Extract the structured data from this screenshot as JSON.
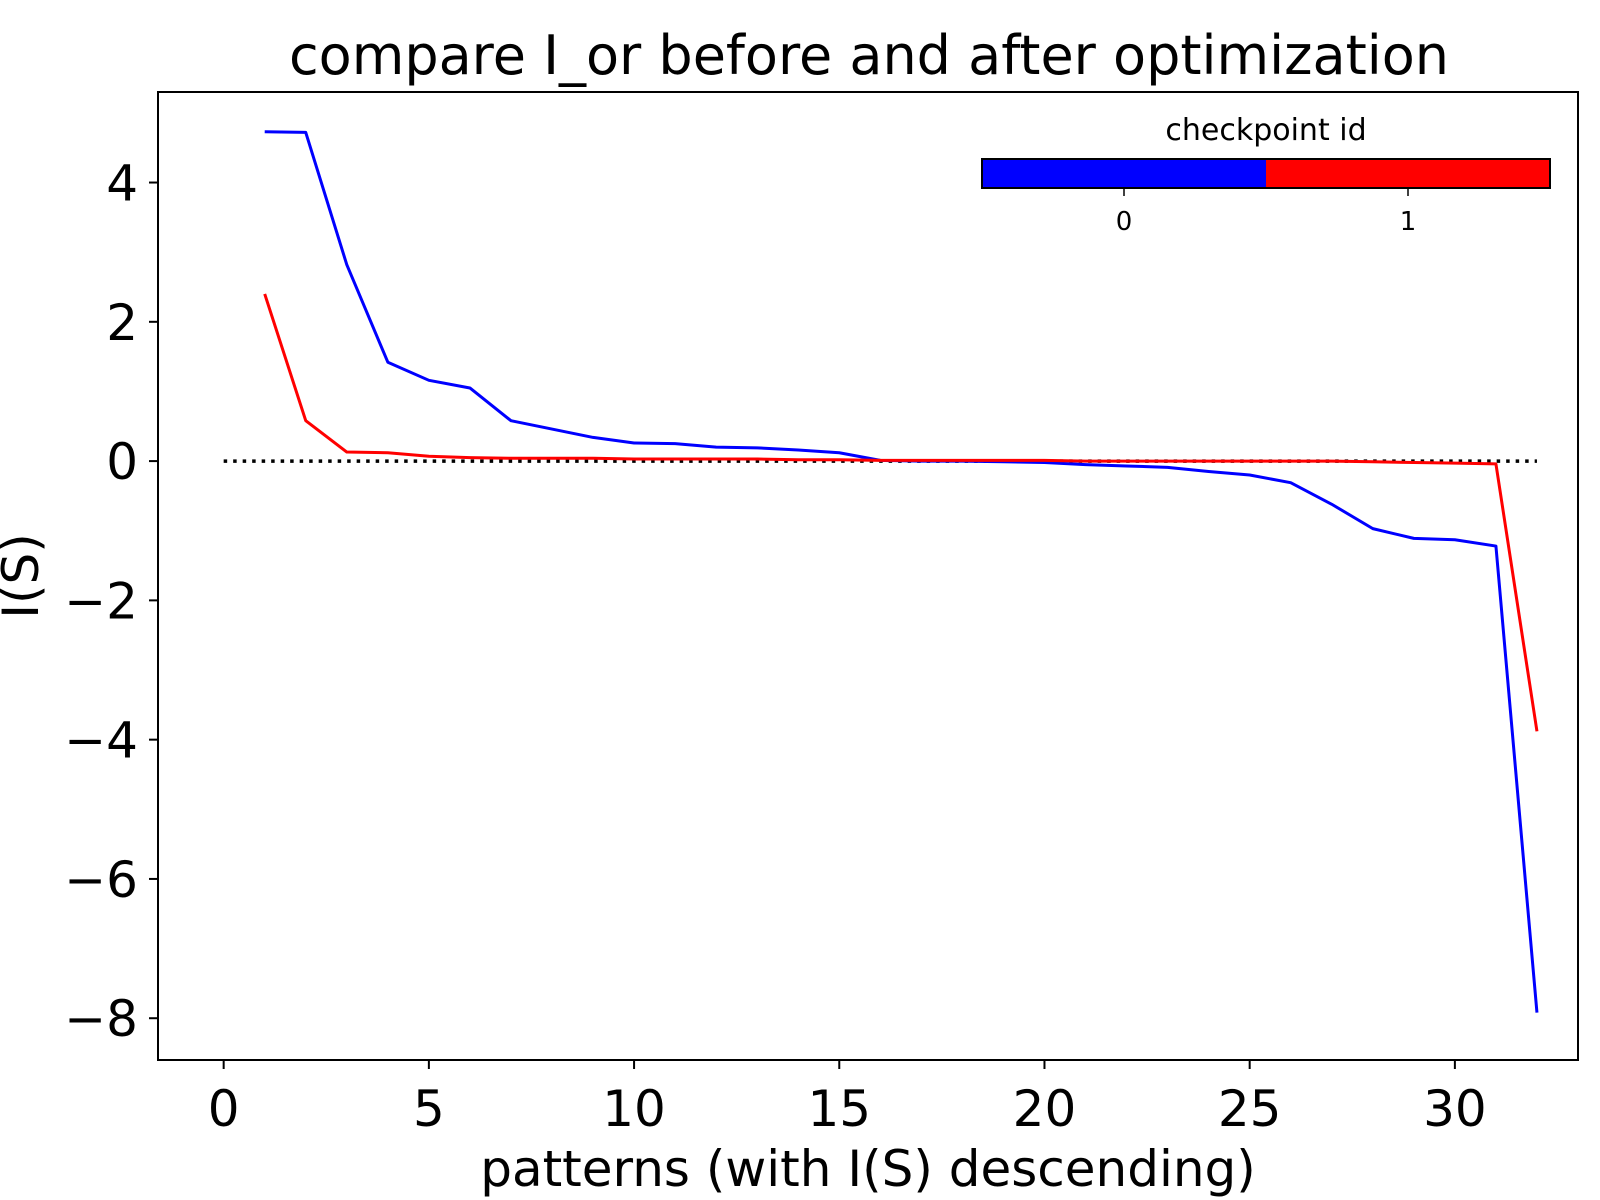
{
  "chart_data": {
    "type": "line",
    "title": "compare I_or before and after optimization",
    "xlabel": "patterns (with I(S) descending)",
    "ylabel": "I(S)",
    "xlim": [
      -1.6,
      33.0
    ],
    "ylim": [
      -8.6,
      5.3
    ],
    "xticks": [
      0,
      5,
      10,
      15,
      20,
      25,
      30
    ],
    "yticks": [
      -8,
      -6,
      -4,
      -2,
      0,
      2,
      4
    ],
    "xtick_labels": [
      "0",
      "5",
      "10",
      "15",
      "20",
      "25",
      "30"
    ],
    "ytick_labels": [
      "−8",
      "−6",
      "−4",
      "−2",
      "0",
      "2",
      "4"
    ],
    "grid": false,
    "series": [
      {
        "color": "#0000ff",
        "x": [
          1,
          2,
          3,
          4,
          5,
          6,
          7,
          8,
          9,
          10,
          11,
          12,
          13,
          14,
          15,
          16,
          17,
          18,
          19,
          20,
          21,
          22,
          23,
          24,
          25,
          26,
          27,
          28,
          29,
          30,
          31,
          32
        ],
        "y": [
          4.73,
          4.72,
          2.82,
          1.42,
          1.16,
          1.05,
          0.58,
          0.46,
          0.34,
          0.26,
          0.25,
          0.2,
          0.19,
          0.16,
          0.12,
          0.01,
          0.0,
          0.0,
          -0.01,
          -0.02,
          -0.05,
          -0.07,
          -0.09,
          -0.15,
          -0.2,
          -0.31,
          -0.62,
          -0.97,
          -1.11,
          -1.13,
          -1.22,
          -7.92
        ]
      },
      {
        "color": "#ff0000",
        "x": [
          1,
          2,
          3,
          4,
          5,
          6,
          7,
          8,
          9,
          10,
          11,
          12,
          13,
          14,
          15,
          16,
          17,
          18,
          19,
          20,
          21,
          22,
          23,
          24,
          25,
          26,
          27,
          28,
          29,
          30,
          31,
          32
        ],
        "y": [
          2.4,
          0.58,
          0.13,
          0.12,
          0.07,
          0.05,
          0.04,
          0.04,
          0.04,
          0.03,
          0.03,
          0.03,
          0.03,
          0.02,
          0.02,
          0.01,
          0.01,
          0.01,
          0.01,
          0.01,
          0.0,
          0.0,
          0.0,
          0.0,
          0.0,
          0.0,
          0.0,
          -0.01,
          -0.02,
          -0.03,
          -0.04,
          -3.88
        ]
      }
    ],
    "reference_line": {
      "y": 0,
      "x": [
        0,
        32
      ],
      "style": "dotted",
      "color": "#000000"
    },
    "colorbar": {
      "title": "checkpoint id",
      "ticks": [
        "0",
        "1"
      ],
      "colors": [
        "#0000ff",
        "#ff0000"
      ],
      "placement": "top-right"
    }
  }
}
